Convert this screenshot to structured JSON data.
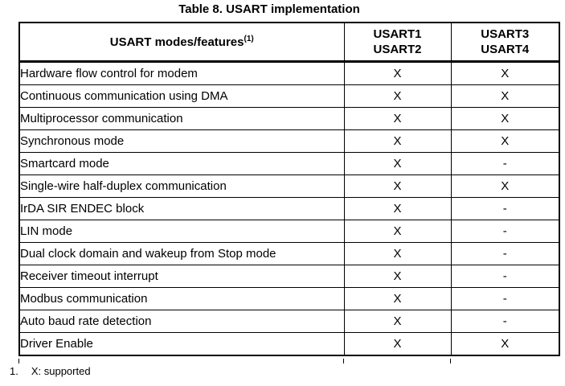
{
  "title": "Table 8. USART implementation",
  "colors": {
    "background": "#ffffff",
    "text": "#000000",
    "border": "#000000"
  },
  "table": {
    "header": {
      "features_label": "USART modes/features",
      "features_superscript": "(1)",
      "col_usart12": "USART1\nUSART2",
      "col_usart34": "USART3\nUSART4"
    },
    "rows": [
      {
        "feature": "Hardware flow control for modem",
        "usart12": "X",
        "usart34": "X"
      },
      {
        "feature": "Continuous communication using DMA",
        "usart12": "X",
        "usart34": "X"
      },
      {
        "feature": "Multiprocessor communication",
        "usart12": "X",
        "usart34": "X"
      },
      {
        "feature": "Synchronous mode",
        "usart12": "X",
        "usart34": "X"
      },
      {
        "feature": "Smartcard mode",
        "usart12": "X",
        "usart34": "-"
      },
      {
        "feature": "Single-wire half-duplex communication",
        "usart12": "X",
        "usart34": "X"
      },
      {
        "feature": "IrDA SIR ENDEC block",
        "usart12": "X",
        "usart34": "-"
      },
      {
        "feature": "LIN mode",
        "usart12": "X",
        "usart34": "-"
      },
      {
        "feature": "Dual clock domain and wakeup from Stop mode",
        "usart12": "X",
        "usart34": "-"
      },
      {
        "feature": "Receiver timeout interrupt",
        "usart12": "X",
        "usart34": "-"
      },
      {
        "feature": "Modbus communication",
        "usart12": "X",
        "usart34": "-"
      },
      {
        "feature": "Auto baud rate detection",
        "usart12": "X",
        "usart34": "-"
      },
      {
        "feature": "Driver Enable",
        "usart12": "X",
        "usart34": "X"
      }
    ]
  },
  "footnote": {
    "number": "1.",
    "text": "X: supported"
  }
}
